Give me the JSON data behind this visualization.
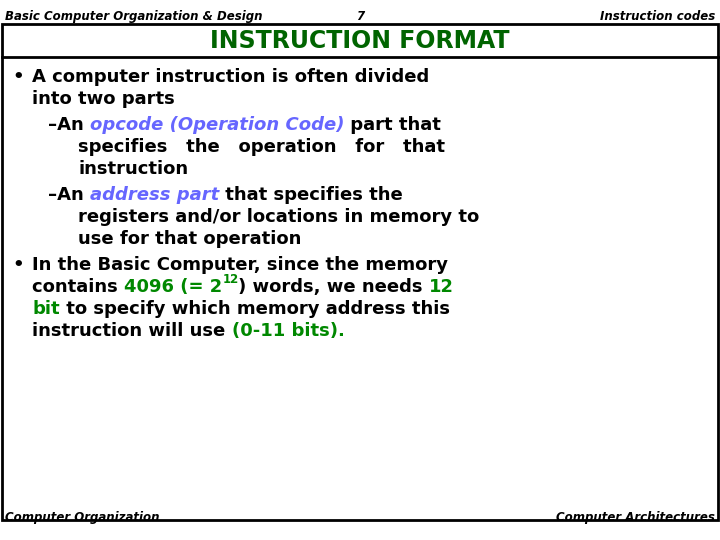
{
  "header_left": "Basic Computer Organization & Design",
  "header_center": "7",
  "header_right": "Instruction codes",
  "title": "INSTRUCTION FORMAT",
  "title_color": "#006400",
  "footer_left": "Computer Organization",
  "footer_right": "Computer Architectures",
  "bg_color": "#ffffff",
  "header_color": "#000000",
  "body_color": "#000000",
  "blue_color": "#6666ff",
  "green_color": "#008800",
  "border_color": "#000000"
}
